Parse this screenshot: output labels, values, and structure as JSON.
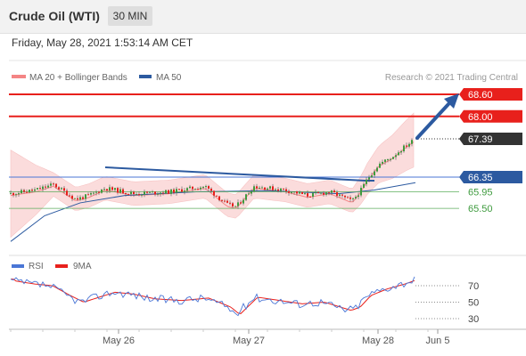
{
  "header": {
    "title": "Crude Oil (WTI)",
    "timeframe": "30 MIN"
  },
  "datetime": "Friday, May 28, 2021 1:53:14 AM CET",
  "attribution": "Research © 2021 Trading Central",
  "colors": {
    "resistance": "#e8201c",
    "price_tag": "#333333",
    "pivot": "#2c5aa0",
    "support": "#3e9b3e",
    "candle_up": "#3e9b3e",
    "candle_down": "#e8201c",
    "bollinger_fill": "#fbdcdc",
    "ma20": "#f48585",
    "ma50": "#2c5aa0",
    "rsi": "#4a76d6",
    "rsi_ma": "#e8201c",
    "arrow": "#2c5aa0"
  },
  "chart_data": [
    {
      "type": "candlestick",
      "legend": [
        {
          "name": "MA 20 + Bollinger Bands",
          "color": "#f48585"
        },
        {
          "name": "MA 50",
          "color": "#2c5aa0"
        }
      ],
      "x_ticks": [
        "May 26",
        "May 27",
        "May 28",
        "Jun 5"
      ],
      "ylim": [
        64.2,
        68.8
      ],
      "current_price": 67.39,
      "levels": [
        {
          "value": 68.6,
          "label": "68.60",
          "kind": "resistance",
          "style": "tag"
        },
        {
          "value": 68.0,
          "label": "68.00",
          "kind": "resistance",
          "style": "tag"
        },
        {
          "value": 67.39,
          "label": "67.39",
          "kind": "price",
          "style": "tag"
        },
        {
          "value": 66.35,
          "label": "66.35",
          "kind": "pivot",
          "style": "tag"
        },
        {
          "value": 65.95,
          "label": "65.95",
          "kind": "support",
          "style": "text"
        },
        {
          "value": 65.5,
          "label": "65.50",
          "kind": "support",
          "style": "text"
        }
      ]
    },
    {
      "type": "line",
      "legend": [
        {
          "name": "RSI",
          "color": "#4a76d6"
        },
        {
          "name": "9MA",
          "color": "#e8201c"
        }
      ],
      "y_ticks": [
        70,
        50,
        30
      ],
      "ylim": [
        20,
        85
      ]
    }
  ]
}
